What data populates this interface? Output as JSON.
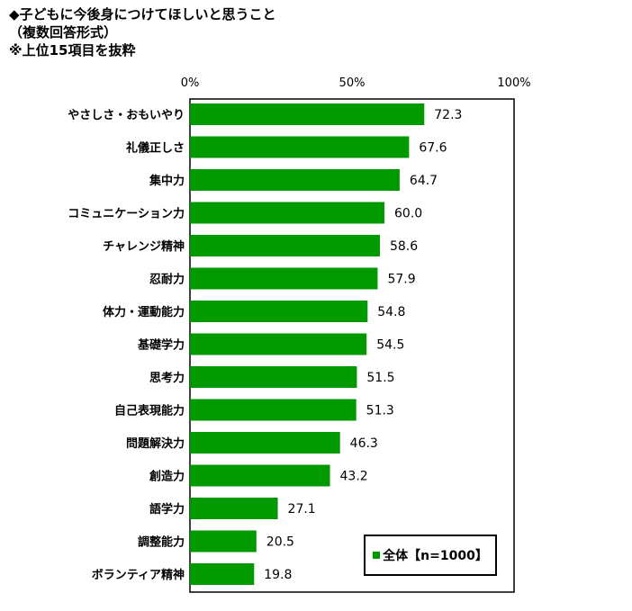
{
  "header": {
    "title": "◆子どもに今後身につけてほしいと思うこと",
    "subtitle": "（複数回答形式）",
    "note": "※上位15項目を抜粋"
  },
  "chart_data": {
    "type": "bar",
    "orientation": "horizontal",
    "categories": [
      "やさしさ・おもいやり",
      "礼儀正しさ",
      "集中力",
      "コミュニケーション力",
      "チャレンジ精神",
      "忍耐力",
      "体力・運動能力",
      "基礎学力",
      "思考力",
      "自己表現能力",
      "問題解決力",
      "創造力",
      "語学力",
      "調整能力",
      "ボランティア精神"
    ],
    "series": [
      {
        "name": "全体【n=1000】",
        "values": [
          72.3,
          67.6,
          64.7,
          60.0,
          58.6,
          57.9,
          54.8,
          54.5,
          51.5,
          51.3,
          46.3,
          43.2,
          27.1,
          20.5,
          19.8
        ],
        "labels": [
          "72.3",
          "67.6",
          "64.7",
          "60.0",
          "58.6",
          "57.9",
          "54.8",
          "54.5",
          "51.5",
          "51.3",
          "46.3",
          "43.2",
          "27.1",
          "20.5",
          "19.8"
        ]
      }
    ],
    "xlim": [
      0,
      100
    ],
    "ticks": [
      "0%",
      "50%",
      "100%"
    ],
    "grid": false,
    "legend_position": "bottom-right",
    "bar_color": "#009900",
    "legend": {
      "label": "全体【n=1000】"
    }
  }
}
